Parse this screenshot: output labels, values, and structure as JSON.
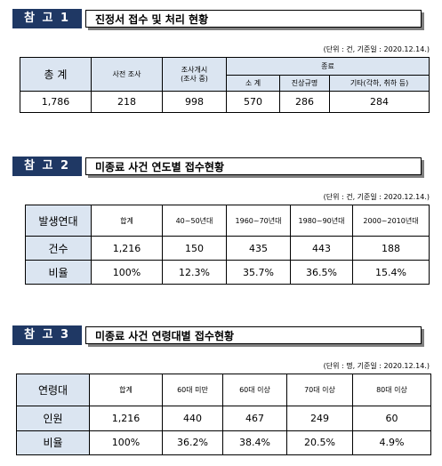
{
  "s1": {
    "badge": "참 고 1",
    "title": "진정서 접수 및 처리 현황",
    "unit": "(단위 : 건, 기준일 : 2020.12.14.)",
    "h_total": "총 계",
    "h_pre": "사전 조사",
    "h_open_line1": "조사개시",
    "h_open_line2": "(조사 중)",
    "h_end": "종료",
    "h_sub": "소 계",
    "h_truth": "진상규명",
    "h_etc": "기타(각하, 취하 등)",
    "v_total": "1,786",
    "v_pre": "218",
    "v_open": "998",
    "v_sub": "570",
    "v_truth": "286",
    "v_etc": "284"
  },
  "s2": {
    "badge": "참 고 2",
    "title": "미종료 사건 연도별 접수현황",
    "unit": "(단위 : 건, 기준일 : 2020.12.14.)",
    "row_head": "발생연대",
    "headers": [
      "합계",
      "40~50년대",
      "1960~70년대",
      "1980~90년대",
      "2000~2010년대"
    ],
    "row1_label": "건수",
    "row1": [
      "1,216",
      "150",
      "435",
      "443",
      "188"
    ],
    "row2_label": "비율",
    "row2": [
      "100%",
      "12.3%",
      "35.7%",
      "36.5%",
      "15.4%"
    ]
  },
  "s3": {
    "badge": "참 고 3",
    "title": "미종료 사건 연령대별 접수현황",
    "unit": "(단위 : 명, 기준일 : 2020.12.14.)",
    "row_head": "연령대",
    "headers": [
      "합계",
      "60대 미만",
      "60대 이상",
      "70대 이상",
      "80대 이상"
    ],
    "row1_label": "인원",
    "row1": [
      "1,216",
      "440",
      "467",
      "249",
      "60"
    ],
    "row2_label": "비율",
    "row2": [
      "100%",
      "36.2%",
      "38.4%",
      "20.5%",
      "4.9%"
    ]
  }
}
